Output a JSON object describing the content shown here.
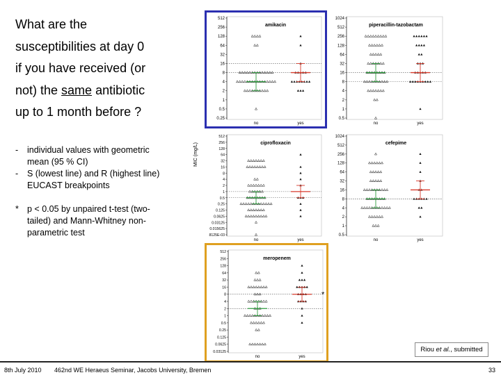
{
  "question": {
    "lines": [
      "What are the",
      "susceptibilities at day 0",
      "if you have received (or",
      "not) the "
    ],
    "underlined_word": "same",
    "line4_end": " antibiotic",
    "line5": "up to 1 month before ?"
  },
  "bullets": [
    {
      "marker": "-",
      "text": "individual values with geometric mean (95 % CI)"
    },
    {
      "marker": "-",
      "text": "S (lowest line) and R (highest line) EUCAST breakpoints"
    }
  ],
  "note": {
    "marker": "*",
    "text": "p < 0.05 by unpaired t-test (two-tailed) and Mann-Whitney non-parametric test"
  },
  "y_axis_label": "MIC (mg/L)",
  "citation": {
    "prefix": "Riou ",
    "italic": "et al.",
    "suffix": ", submitted"
  },
  "footer": {
    "date": "8th July 2010",
    "seminar": "462nd WE Heraeus Seminar, Jacobs University, Bremen",
    "page": "33"
  },
  "colors": {
    "blue_box": "#2b2fb0",
    "orange_box": "#dfa020",
    "r_line": "#d93a2b",
    "s_line": "#2f9e3f"
  },
  "chart_data": [
    {
      "type": "scatter",
      "title": "amikacin",
      "categories": [
        "no",
        "yes"
      ],
      "yticks": [
        "512",
        "256",
        "128",
        "64",
        "32",
        "16",
        "8",
        "4",
        "2",
        "1",
        "0.5",
        "0.25"
      ],
      "points_no": [
        [
          "128",
          4
        ],
        [
          "64",
          2
        ],
        [
          "8",
          14
        ],
        [
          "4",
          16
        ],
        [
          "2",
          10
        ],
        [
          "0.5",
          1
        ]
      ],
      "points_yes": [
        [
          "128",
          1
        ],
        [
          "64",
          1
        ],
        [
          "16",
          1
        ],
        [
          "8",
          5
        ],
        [
          "4",
          8
        ],
        [
          "2",
          3
        ]
      ],
      "mean_no": "4",
      "mean_yes": "8",
      "breakpoints": {
        "S": "8",
        "R": "16"
      },
      "significant": false
    },
    {
      "type": "scatter",
      "title": "piperacillin-tazobactam",
      "categories": [
        "no",
        "yes"
      ],
      "yticks": [
        "1024",
        "512",
        "256",
        "128",
        "64",
        "32",
        "16",
        "8",
        "4",
        "2",
        "1",
        "0.5"
      ],
      "points_no": [
        [
          "256",
          9
        ],
        [
          "128",
          6
        ],
        [
          "64",
          5
        ],
        [
          "32",
          7
        ],
        [
          "16",
          8
        ],
        [
          "8",
          10
        ],
        [
          "4",
          7
        ],
        [
          "2",
          2
        ],
        [
          "0.5",
          1
        ]
      ],
      "points_yes": [
        [
          "256",
          6
        ],
        [
          "128",
          4
        ],
        [
          "64",
          2
        ],
        [
          "32",
          3
        ],
        [
          "16",
          5
        ],
        [
          "8",
          9
        ],
        [
          "1",
          1
        ]
      ],
      "mean_no": "16",
      "mean_yes": "16",
      "breakpoints": {
        "S": "8",
        "R": "16"
      },
      "significant": false
    },
    {
      "type": "scatter",
      "title": "ciprofloxacin",
      "categories": [
        "no",
        "yes"
      ],
      "yticks": [
        "512",
        "256",
        "128",
        "64",
        "32",
        "16",
        "8",
        "4",
        "2",
        "1",
        "0.5",
        "0.25",
        "0.125",
        "0.0625",
        "0.03125",
        "0.015625",
        "7.8125E-03"
      ],
      "points_no": [
        [
          "32",
          7
        ],
        [
          "16",
          8
        ],
        [
          "4",
          2
        ],
        [
          "2",
          7
        ],
        [
          "1",
          6
        ],
        [
          "0.5",
          8
        ],
        [
          "0.25",
          13
        ],
        [
          "0.125",
          7
        ],
        [
          "0.0625",
          9
        ],
        [
          "0.03125",
          1
        ],
        [
          "7.8125E-03",
          1
        ]
      ],
      "points_yes": [
        [
          "64",
          1
        ],
        [
          "16",
          1
        ],
        [
          "8",
          1
        ],
        [
          "4",
          1
        ],
        [
          "2",
          1
        ],
        [
          "0.5",
          3
        ],
        [
          "0.25",
          1
        ],
        [
          "0.125",
          1
        ],
        [
          "0.0625",
          1
        ]
      ],
      "mean_no": "0.5",
      "mean_yes": "1",
      "breakpoints": {
        "S": "0.5",
        "R": "1"
      },
      "significant": false
    },
    {
      "type": "scatter",
      "title": "cefepime",
      "categories": [
        "no",
        "yes"
      ],
      "yticks": [
        "1024",
        "512",
        "256",
        "128",
        "64",
        "32",
        "16",
        "8",
        "4",
        "2",
        "1",
        "0.5"
      ],
      "points_no": [
        [
          "256",
          1
        ],
        [
          "128",
          6
        ],
        [
          "64",
          5
        ],
        [
          "32",
          5
        ],
        [
          "16",
          10
        ],
        [
          "8",
          8
        ],
        [
          "4",
          12
        ],
        [
          "2",
          6
        ],
        [
          "1",
          3
        ]
      ],
      "points_yes": [
        [
          "256",
          1
        ],
        [
          "128",
          1
        ],
        [
          "64",
          1
        ],
        [
          "32",
          1
        ],
        [
          "16",
          2
        ],
        [
          "8",
          6
        ],
        [
          "4",
          2
        ],
        [
          "2",
          1
        ]
      ],
      "mean_no": "8",
      "mean_yes": "16",
      "breakpoints": {
        "S": "8",
        "R": "8"
      },
      "significant": false
    },
    {
      "type": "scatter",
      "title": "meropenem",
      "categories": [
        "no",
        "yes"
      ],
      "yticks": [
        "512",
        "256",
        "128",
        "64",
        "32",
        "16",
        "8",
        "4",
        "2",
        "1",
        "0.5",
        "0.25",
        "0.125",
        "0.0625",
        "0.03125"
      ],
      "points_no": [
        [
          "64",
          2
        ],
        [
          "32",
          3
        ],
        [
          "16",
          8
        ],
        [
          "8",
          3
        ],
        [
          "4",
          8
        ],
        [
          "2",
          3
        ],
        [
          "1",
          11
        ],
        [
          "0.5",
          6
        ],
        [
          "0.25",
          2
        ],
        [
          "0.0625",
          7
        ]
      ],
      "points_yes": [
        [
          "128",
          1
        ],
        [
          "64",
          1
        ],
        [
          "32",
          3
        ],
        [
          "16",
          5
        ],
        [
          "8",
          4
        ],
        [
          "4",
          4
        ],
        [
          "2",
          1
        ],
        [
          "1",
          1
        ],
        [
          "0.5",
          1
        ]
      ],
      "mean_no": "2",
      "mean_yes": "8",
      "breakpoints": {
        "S": "2",
        "R": "8"
      },
      "significant": true,
      "significance_marker": "*"
    }
  ]
}
